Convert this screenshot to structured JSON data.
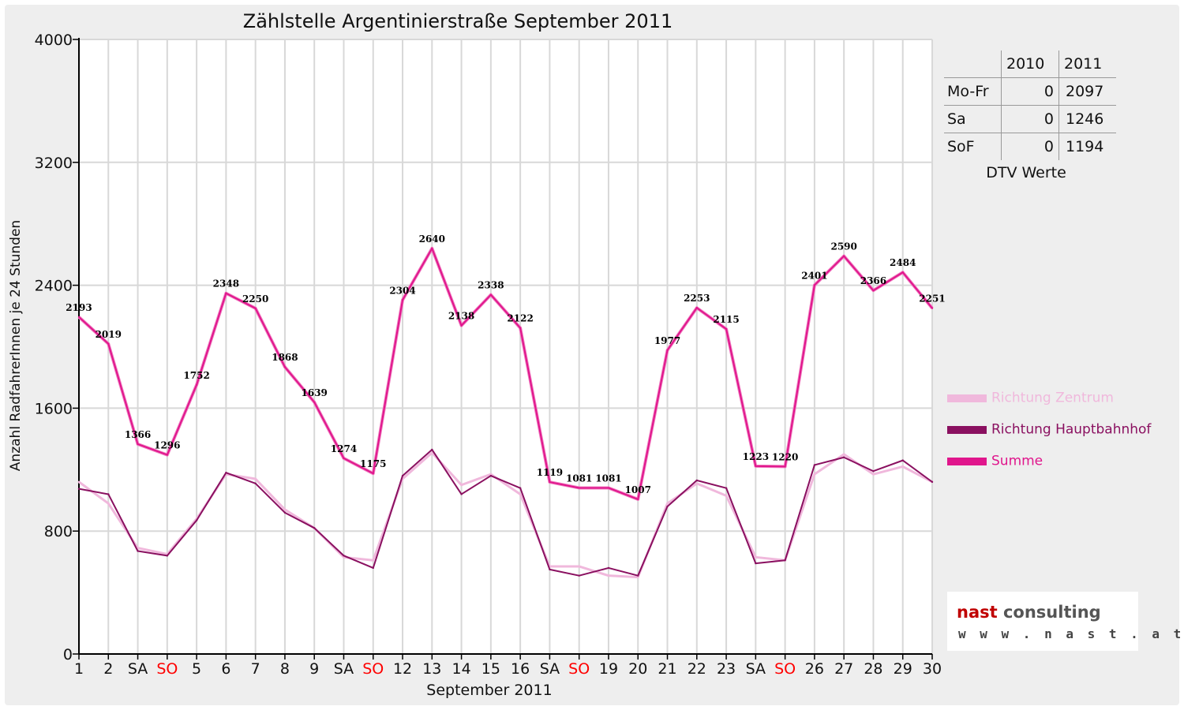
{
  "chart_data": {
    "type": "line",
    "title": "Zählstelle Argentinierstraße September 2011",
    "xlabel": "September 2011",
    "ylabel": "Anzahl RadfahrerInnen je 24 Stunden",
    "ylim": [
      0,
      4000
    ],
    "yticks": [
      0,
      800,
      1600,
      2400,
      3200,
      4000
    ],
    "grid": true,
    "legend_position": "right",
    "categories": [
      "1",
      "2",
      "SA",
      "SO",
      "5",
      "6",
      "7",
      "8",
      "9",
      "SA",
      "SO",
      "12",
      "13",
      "14",
      "15",
      "16",
      "SA",
      "SO",
      "19",
      "20",
      "21",
      "22",
      "23",
      "SA",
      "SO",
      "26",
      "27",
      "28",
      "29",
      "30"
    ],
    "weekend_color": "#ff0000",
    "series": [
      {
        "name": "Richtung Zentrum",
        "color": "#f0b8dc",
        "values": [
          1120,
          980,
          690,
          650,
          880,
          1170,
          1140,
          940,
          820,
          630,
          610,
          1140,
          1310,
          1100,
          1170,
          1040,
          570,
          570,
          510,
          500,
          980,
          1110,
          1030,
          630,
          610,
          1170,
          1300,
          1170,
          1220,
          1120
        ]
      },
      {
        "name": "Richtung Hauptbahnhof",
        "color": "#8a1060",
        "values": [
          1075,
          1040,
          670,
          640,
          870,
          1180,
          1110,
          920,
          820,
          640,
          560,
          1160,
          1330,
          1040,
          1160,
          1080,
          550,
          510,
          560,
          510,
          960,
          1130,
          1080,
          590,
          610,
          1230,
          1280,
          1190,
          1260,
          1120
        ]
      },
      {
        "name": "Summe",
        "color": "#e0168c",
        "values": [
          2193,
          2019,
          1366,
          1296,
          1752,
          2348,
          2250,
          1868,
          1639,
          1274,
          1175,
          2304,
          2640,
          2138,
          2338,
          2122,
          1119,
          1081,
          1081,
          1007,
          1977,
          2253,
          2115,
          1223,
          1220,
          2401,
          2590,
          2366,
          2484,
          2251
        ]
      }
    ]
  },
  "table": {
    "col_2010": "2010",
    "col_2011": "2011",
    "rows": [
      {
        "label": "Mo-Fr",
        "v2010": "0",
        "v2011": "2097"
      },
      {
        "label": "Sa",
        "v2010": "0",
        "v2011": "1246"
      },
      {
        "label": "SoF",
        "v2010": "0",
        "v2011": "1194"
      }
    ],
    "caption": "DTV Werte"
  },
  "logo": {
    "name_part1": "nast",
    "name_part2": "consulting",
    "url": "w w w . n a s t . a t"
  }
}
